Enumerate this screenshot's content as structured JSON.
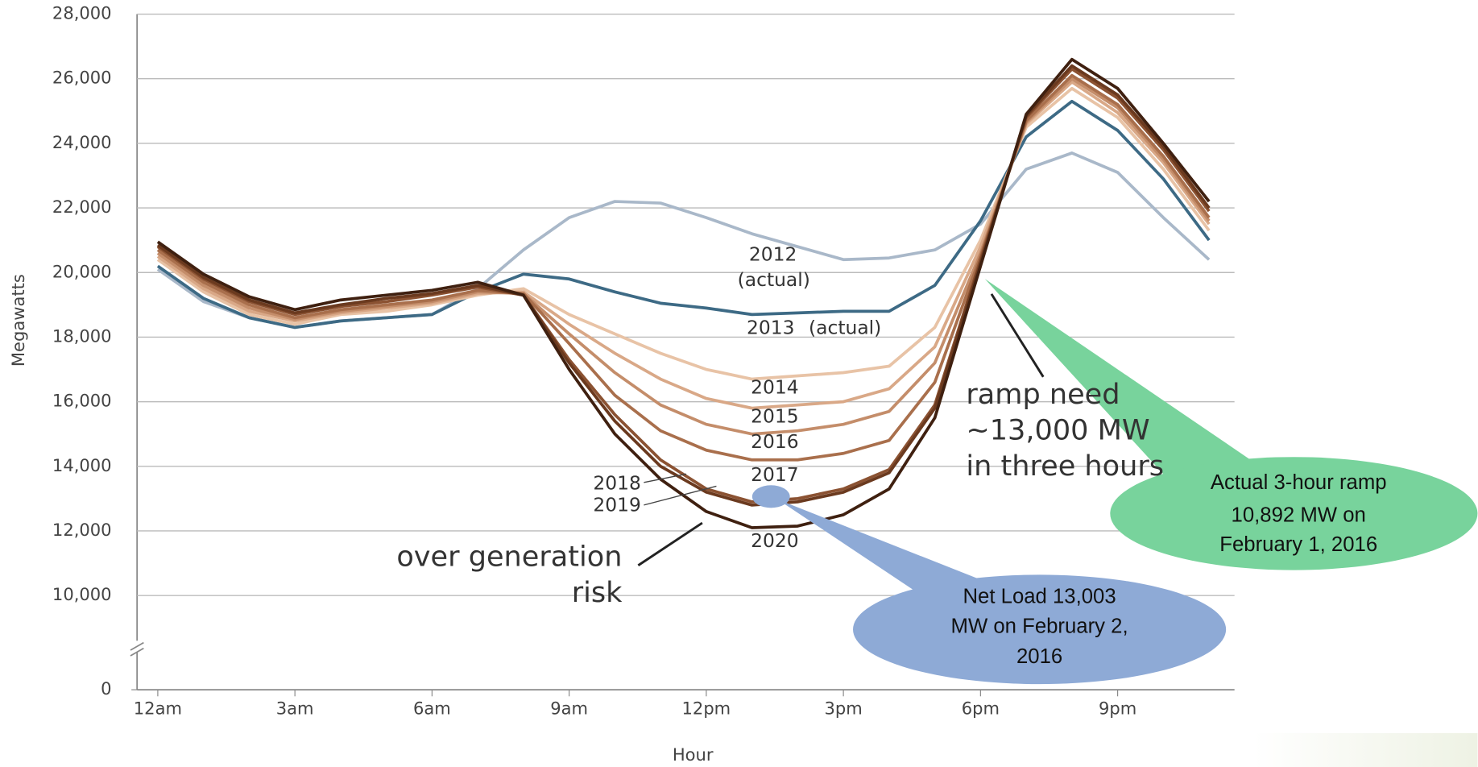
{
  "chart_data": {
    "type": "line",
    "y_label": "Megawatts",
    "x_label": "Hour",
    "x": [
      0,
      1,
      2,
      3,
      4,
      5,
      6,
      7,
      8,
      9,
      10,
      11,
      12,
      13,
      14,
      15,
      16,
      17,
      18,
      19,
      20,
      21,
      22,
      23
    ],
    "xlim": [
      0,
      23
    ],
    "xticks": [
      {
        "value": 0,
        "label": "12am"
      },
      {
        "value": 3,
        "label": "3am"
      },
      {
        "value": 6,
        "label": "6am"
      },
      {
        "value": 9,
        "label": "9am"
      },
      {
        "value": 12,
        "label": "12pm"
      },
      {
        "value": 15,
        "label": "3pm"
      },
      {
        "value": 18,
        "label": "6pm"
      },
      {
        "value": 21,
        "label": "9pm"
      }
    ],
    "ylim": [
      0,
      28000
    ],
    "yticks": [
      {
        "value": 0,
        "label": "0"
      },
      {
        "value": 10000,
        "label": "10,000"
      },
      {
        "value": 12000,
        "label": "12,000"
      },
      {
        "value": 14000,
        "label": "14,000"
      },
      {
        "value": 16000,
        "label": "16,000"
      },
      {
        "value": 18000,
        "label": "18,000"
      },
      {
        "value": 20000,
        "label": "20,000"
      },
      {
        "value": 22000,
        "label": "22,000"
      },
      {
        "value": 24000,
        "label": "24,000"
      },
      {
        "value": 26000,
        "label": "26,000"
      },
      {
        "value": 28000,
        "label": "28,000"
      }
    ],
    "axis_break": true,
    "grid": true,
    "series": [
      {
        "name": "2012",
        "color": "#a9b8c9",
        "values": [
          20100,
          19100,
          18600,
          18300,
          18500,
          18600,
          18700,
          19500,
          20700,
          21700,
          22200,
          22150,
          21700,
          21200,
          20800,
          20400,
          20450,
          20700,
          21500,
          23200,
          23700,
          23100,
          21700,
          20400
        ]
      },
      {
        "name": "2013",
        "color": "#3d6a85",
        "values": [
          20200,
          19200,
          18600,
          18300,
          18500,
          18600,
          18700,
          19400,
          19950,
          19800,
          19400,
          19050,
          18900,
          18700,
          18750,
          18800,
          18800,
          19600,
          21600,
          24200,
          25300,
          24400,
          22900,
          21000
        ]
      },
      {
        "name": "2014",
        "color": "#e8c3a6",
        "values": [
          20400,
          19400,
          18700,
          18400,
          18700,
          18800,
          19000,
          19300,
          19500,
          18700,
          18100,
          17500,
          17000,
          16700,
          16800,
          16900,
          17100,
          18300,
          21000,
          24500,
          25700,
          24800,
          23200,
          21300
        ]
      },
      {
        "name": "2015",
        "color": "#d9a887",
        "values": [
          20500,
          19500,
          18800,
          18500,
          18750,
          18900,
          19050,
          19350,
          19400,
          18400,
          17500,
          16700,
          16100,
          15800,
          15900,
          16000,
          16400,
          17700,
          20800,
          24600,
          25900,
          24950,
          23400,
          21500
        ]
      },
      {
        "name": "2016",
        "color": "#c48d6a",
        "values": [
          20600,
          19600,
          18900,
          18550,
          18800,
          18950,
          19100,
          19400,
          19350,
          18100,
          16900,
          15900,
          15300,
          15000,
          15100,
          15300,
          15700,
          17200,
          20600,
          24650,
          26000,
          25100,
          23500,
          21600
        ]
      },
      {
        "name": "2017",
        "color": "#a96f4c",
        "values": [
          20700,
          19700,
          19000,
          18600,
          18850,
          19000,
          19150,
          19450,
          19350,
          17800,
          16200,
          15100,
          14500,
          14200,
          14200,
          14400,
          14800,
          16600,
          20500,
          24700,
          26100,
          25200,
          23600,
          21700
        ]
      },
      {
        "name": "2018",
        "color": "#8b5232",
        "values": [
          20800,
          19800,
          19100,
          18700,
          18950,
          19100,
          19300,
          19550,
          19300,
          17300,
          15600,
          14200,
          13300,
          12900,
          13000,
          13300,
          13900,
          15900,
          20400,
          24800,
          26300,
          25400,
          23800,
          21900
        ]
      },
      {
        "name": "2019",
        "color": "#6b3a1f",
        "values": [
          20850,
          19850,
          19150,
          18750,
          19000,
          19200,
          19350,
          19600,
          19300,
          17200,
          15400,
          14000,
          13200,
          12800,
          12900,
          13200,
          13800,
          15800,
          20300,
          24850,
          26400,
          25500,
          23900,
          22000
        ]
      },
      {
        "name": "2020",
        "color": "#3f2010",
        "values": [
          20950,
          19950,
          19250,
          18850,
          19150,
          19300,
          19450,
          19700,
          19300,
          17000,
          15000,
          13600,
          12600,
          12100,
          12150,
          12500,
          13300,
          15500,
          20200,
          24900,
          26600,
          25700,
          24000,
          22200
        ]
      }
    ],
    "annotations": [
      "(actual)",
      "(actual)",
      "ramp need",
      "~13,000 MW",
      "in three hours",
      "over generation",
      "risk",
      "Actual 3-hour ramp",
      "10,892 MW on",
      "February 1, 2016",
      "Net Load 13,003",
      "MW on February 2,",
      "2016"
    ]
  }
}
